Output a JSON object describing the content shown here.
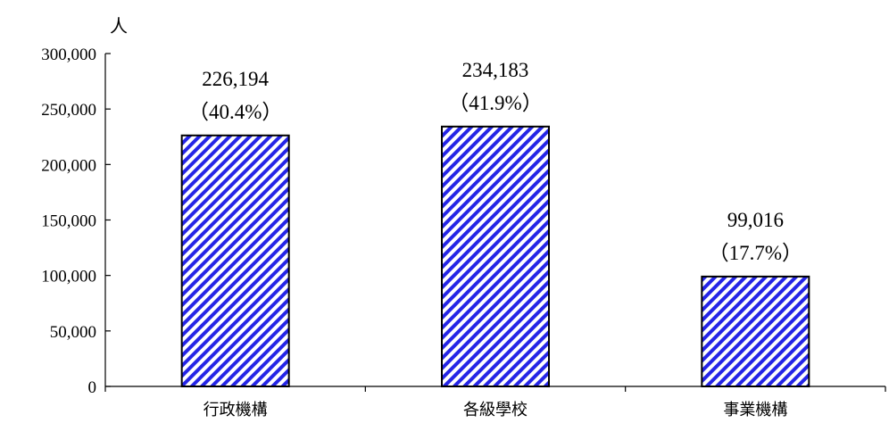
{
  "chart_data": {
    "type": "bar",
    "y_unit_label": "人",
    "categories": [
      "行政機構",
      "各級學校",
      "事業機構"
    ],
    "values": [
      226194,
      234183,
      99016
    ],
    "value_labels": [
      "226,194",
      "234,183",
      "99,016"
    ],
    "percent_labels": [
      "（40.4%）",
      "（41.9%）",
      "（17.7%）"
    ],
    "ylim": [
      0,
      300000
    ],
    "yticks": [
      0,
      50000,
      100000,
      150000,
      200000,
      250000,
      300000
    ],
    "ytick_labels": [
      "0",
      "50,000",
      "100,000",
      "150,000",
      "200,000",
      "250,000",
      "300,000"
    ],
    "grid": false,
    "legend": "none",
    "bar_pattern": "diagonal-hatch",
    "colors": {
      "hatch": "#2525e6",
      "background": "#ffffff",
      "border": "#000000"
    }
  }
}
